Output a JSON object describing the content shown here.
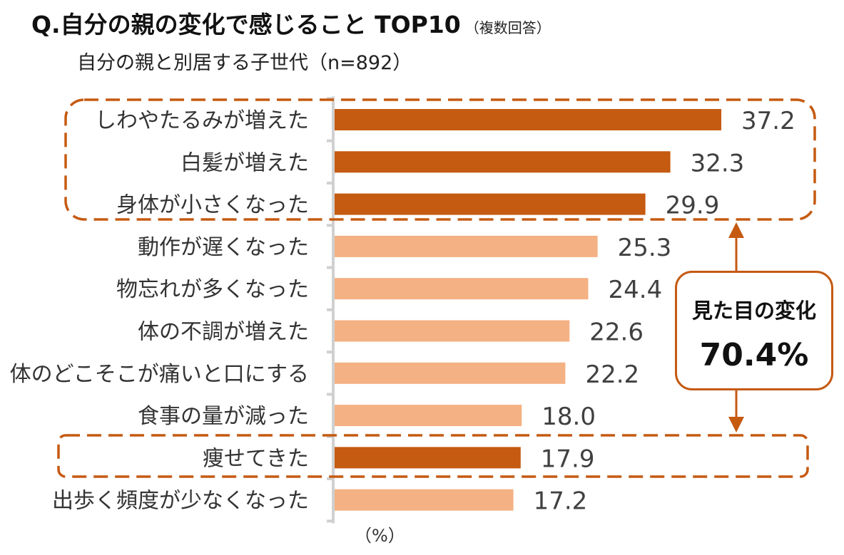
{
  "header": {
    "title": "Q.自分の親の変化で感じること TOP10",
    "title_note": "（複数回答）",
    "subtitle": "自分の親と別居する子世代（n=892）"
  },
  "colors": {
    "highlight_bar": "#c55a11",
    "normal_bar": "#f4b183",
    "dash_border": "#c55a11",
    "axis": "#d0d0d0"
  },
  "callout": {
    "title": "見た目の変化",
    "value": "70.4%"
  },
  "chart_data": {
    "type": "bar",
    "orientation": "horizontal",
    "unit_label": "（%）",
    "categories": [
      "しわやたるみが増えた",
      "白髪が増えた",
      "身体が小さくなった",
      "動作が遅くなった",
      "物忘れが多くなった",
      "体の不調が増えた",
      "体のどこそこが痛いと口にする",
      "食事の量が減った",
      "痩せてきた",
      "出歩く頻度が少なくなった"
    ],
    "values": [
      37.2,
      32.3,
      29.9,
      25.3,
      24.4,
      22.6,
      22.2,
      18.0,
      17.9,
      17.2
    ],
    "value_labels": [
      "37.2",
      "32.3",
      "29.9",
      "25.3",
      "24.4",
      "22.6",
      "22.2",
      "18.0",
      "17.9",
      "17.2"
    ],
    "highlighted": [
      true,
      true,
      true,
      false,
      false,
      false,
      false,
      false,
      true,
      false
    ],
    "xlim": [
      0,
      40
    ]
  }
}
